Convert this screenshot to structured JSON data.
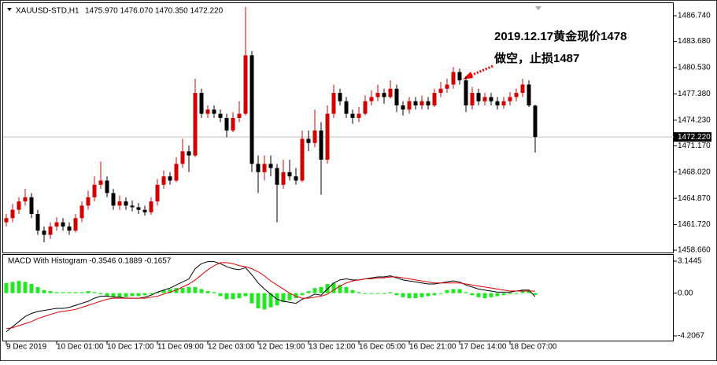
{
  "chart_data": {
    "type": "candlestick",
    "symbol": "XAUUSD-STD,H1",
    "ohlc_text": "1475.970 1476.070 1470.350 1472.220",
    "annotation": [
      "2019.12.17黄金现价1478",
      "做空，止损1487"
    ],
    "bull_color": "#d40000",
    "bear_color": "#000000",
    "ylim": [
      1458.38,
      1488.25
    ],
    "yticks": [
      {
        "value": 1486.74,
        "label": "1486.740"
      },
      {
        "value": 1483.68,
        "label": "1483.680"
      },
      {
        "value": 1480.53,
        "label": "1480.530"
      },
      {
        "value": 1477.38,
        "label": "1477.380"
      },
      {
        "value": 1474.23,
        "label": "1474.230"
      },
      {
        "value": 1471.17,
        "label": "1471.170"
      },
      {
        "value": 1468.02,
        "label": "1468.020"
      },
      {
        "value": 1464.87,
        "label": "1464.870"
      },
      {
        "value": 1461.72,
        "label": "1461.720"
      },
      {
        "value": 1458.66,
        "label": "1458.660"
      }
    ],
    "last_price": {
      "value": 1472.22,
      "label": "1472.220"
    },
    "xticks": [
      {
        "value": 0,
        "label": "9 Dec 2019"
      },
      {
        "value": 8,
        "label": "10 Dec 01:00"
      },
      {
        "value": 16,
        "label": "10 Dec 17:00"
      },
      {
        "value": 24,
        "label": "11 Dec 09:00"
      },
      {
        "value": 32,
        "label": "12 Dec 03:00"
      },
      {
        "value": 40,
        "label": "12 Dec 19:00"
      },
      {
        "value": 48,
        "label": "13 Dec 12:00"
      },
      {
        "value": 56,
        "label": "16 Dec 05:00"
      },
      {
        "value": 64,
        "label": "16 Dec 21:00"
      },
      {
        "value": 72,
        "label": "17 Dec 14:00"
      },
      {
        "value": 80,
        "label": "18 Dec 07:00"
      }
    ],
    "candles": [
      [
        1462.0,
        1463.0,
        1461.5,
        1462.5
      ],
      [
        1462.5,
        1464.2,
        1462.0,
        1463.5
      ],
      [
        1463.5,
        1465.0,
        1463.0,
        1464.5
      ],
      [
        1464.5,
        1466.0,
        1464.0,
        1465.0
      ],
      [
        1465.0,
        1465.5,
        1462.5,
        1463.0
      ],
      [
        1463.0,
        1463.5,
        1460.5,
        1461.0
      ],
      [
        1461.0,
        1461.5,
        1459.6,
        1460.5
      ],
      [
        1460.5,
        1462.0,
        1460.0,
        1461.5
      ],
      [
        1461.5,
        1462.6,
        1461.0,
        1462.0
      ],
      [
        1462.0,
        1462.5,
        1461.0,
        1461.5
      ],
      [
        1461.5,
        1462.0,
        1460.5,
        1461.0
      ],
      [
        1461.0,
        1463.0,
        1460.8,
        1462.5
      ],
      [
        1462.5,
        1464.5,
        1462.0,
        1464.0
      ],
      [
        1464.0,
        1465.8,
        1463.5,
        1465.0
      ],
      [
        1465.0,
        1467.5,
        1464.5,
        1466.5
      ],
      [
        1466.5,
        1469.3,
        1466.0,
        1467.0
      ],
      [
        1467.0,
        1467.5,
        1465.0,
        1465.5
      ],
      [
        1465.5,
        1466.0,
        1463.5,
        1464.0
      ],
      [
        1464.0,
        1465.2,
        1463.5,
        1464.5
      ],
      [
        1464.5,
        1465.0,
        1463.5,
        1464.0
      ],
      [
        1464.0,
        1464.6,
        1463.3,
        1463.8
      ],
      [
        1463.8,
        1464.3,
        1463.0,
        1463.5
      ],
      [
        1463.5,
        1464.0,
        1462.8,
        1463.2
      ],
      [
        1463.2,
        1465.0,
        1462.9,
        1464.5
      ],
      [
        1464.5,
        1467.2,
        1464.0,
        1466.5
      ],
      [
        1466.5,
        1468.2,
        1466.0,
        1467.5
      ],
      [
        1467.5,
        1468.0,
        1466.5,
        1467.0
      ],
      [
        1467.0,
        1469.8,
        1466.8,
        1469.0
      ],
      [
        1469.0,
        1472.0,
        1468.5,
        1470.5
      ],
      [
        1470.5,
        1471.2,
        1468.0,
        1470.0
      ],
      [
        1470.0,
        1479.2,
        1469.8,
        1477.5
      ],
      [
        1477.5,
        1478.0,
        1474.5,
        1475.0
      ],
      [
        1475.0,
        1476.0,
        1474.5,
        1475.5
      ],
      [
        1475.5,
        1476.0,
        1474.5,
        1475.0
      ],
      [
        1475.0,
        1475.5,
        1474.0,
        1474.5
      ],
      [
        1474.5,
        1475.0,
        1472.2,
        1473.0
      ],
      [
        1473.0,
        1475.2,
        1472.8,
        1474.5
      ],
      [
        1474.5,
        1476.5,
        1474.0,
        1475.0
      ],
      [
        1475.0,
        1487.8,
        1474.8,
        1482.0
      ],
      [
        1482.0,
        1482.5,
        1468.0,
        1469.0
      ],
      [
        1469.0,
        1470.0,
        1465.5,
        1468.0
      ],
      [
        1468.0,
        1470.0,
        1467.0,
        1469.0
      ],
      [
        1469.0,
        1470.0,
        1467.5,
        1468.5
      ],
      [
        1468.5,
        1469.0,
        1462.0,
        1466.5
      ],
      [
        1466.5,
        1469.5,
        1466.0,
        1468.0
      ],
      [
        1468.0,
        1469.5,
        1467.0,
        1467.5
      ],
      [
        1467.5,
        1468.5,
        1466.5,
        1467.0
      ],
      [
        1467.0,
        1473.0,
        1466.8,
        1472.0
      ],
      [
        1472.0,
        1473.0,
        1470.5,
        1471.5
      ],
      [
        1471.5,
        1475.5,
        1471.0,
        1473.0
      ],
      [
        1473.0,
        1474.0,
        1465.3,
        1469.5
      ],
      [
        1469.5,
        1476.0,
        1469.0,
        1475.0
      ],
      [
        1475.0,
        1478.5,
        1474.5,
        1477.5
      ],
      [
        1477.5,
        1478.0,
        1476.0,
        1476.5
      ],
      [
        1476.5,
        1477.0,
        1474.5,
        1475.0
      ],
      [
        1475.0,
        1475.5,
        1473.8,
        1474.5
      ],
      [
        1474.5,
        1475.8,
        1474.0,
        1475.0
      ],
      [
        1475.0,
        1477.2,
        1474.8,
        1476.5
      ],
      [
        1476.5,
        1477.8,
        1476.0,
        1477.0
      ],
      [
        1477.0,
        1478.5,
        1476.5,
        1477.5
      ],
      [
        1477.5,
        1478.0,
        1476.2,
        1477.0
      ],
      [
        1477.0,
        1479.0,
        1476.8,
        1478.0
      ],
      [
        1478.0,
        1478.5,
        1475.2,
        1476.0
      ],
      [
        1476.0,
        1476.5,
        1474.8,
        1475.5
      ],
      [
        1475.5,
        1477.0,
        1475.0,
        1476.5
      ],
      [
        1476.5,
        1477.0,
        1475.5,
        1476.0
      ],
      [
        1476.0,
        1477.2,
        1475.5,
        1476.5
      ],
      [
        1476.5,
        1477.0,
        1475.5,
        1476.0
      ],
      [
        1476.0,
        1478.0,
        1475.8,
        1477.5
      ],
      [
        1477.5,
        1478.8,
        1477.0,
        1478.0
      ],
      [
        1478.0,
        1479.2,
        1477.5,
        1478.5
      ],
      [
        1478.5,
        1480.6,
        1478.0,
        1480.0
      ],
      [
        1480.0,
        1480.4,
        1478.5,
        1479.0
      ],
      [
        1479.0,
        1479.5,
        1475.2,
        1476.0
      ],
      [
        1476.0,
        1478.2,
        1475.5,
        1477.5
      ],
      [
        1477.5,
        1478.0,
        1476.0,
        1476.5
      ],
      [
        1476.5,
        1477.5,
        1476.0,
        1477.0
      ],
      [
        1477.0,
        1477.5,
        1476.0,
        1476.5
      ],
      [
        1476.5,
        1477.0,
        1475.5,
        1476.0
      ],
      [
        1476.0,
        1477.0,
        1475.6,
        1476.5
      ],
      [
        1476.5,
        1477.6,
        1476.0,
        1477.0
      ],
      [
        1477.0,
        1478.0,
        1476.5,
        1477.5
      ],
      [
        1477.5,
        1479.2,
        1477.0,
        1478.5
      ],
      [
        1478.5,
        1479.0,
        1475.8,
        1476.0
      ],
      [
        1475.97,
        1476.07,
        1470.35,
        1472.22
      ]
    ],
    "macd": {
      "title": "MACD With Histogram -0.3546 0.1889 -0.1657",
      "ylim": [
        -4.671,
        3.764
      ],
      "yticks": [
        3.1445,
        {
          "value": 0,
          "label": "0.00"
        },
        -4.2067
      ],
      "histogram_color": "#22e622",
      "macd_color": "#000000",
      "signal_color": "#e00000",
      "histogram": [
        1.0,
        1.1,
        1.2,
        1.1,
        0.9,
        0.6,
        0.3,
        0.2,
        0.1,
        0.1,
        0.1,
        0.1,
        0.1,
        0.2,
        0.1,
        -0.1,
        -0.3,
        -0.4,
        -0.4,
        -0.4,
        -0.3,
        -0.3,
        -0.2,
        -0.1,
        0.1,
        0.3,
        0.4,
        0.5,
        0.5,
        0.6,
        0.6,
        0.4,
        0.2,
        0.1,
        -0.3,
        -0.6,
        -0.6,
        -0.5,
        -0.3,
        -1.0,
        -1.5,
        -1.6,
        -1.4,
        -1.2,
        -0.9,
        -0.7,
        -0.5,
        -0.2,
        0.2,
        0.5,
        0.6,
        0.9,
        1.0,
        0.8,
        0.6,
        0.3,
        0.1,
        0.0,
        0.0,
        0.0,
        0.0,
        0.1,
        -0.2,
        -0.4,
        -0.5,
        -0.5,
        -0.4,
        -0.3,
        -0.2,
        0.0,
        0.3,
        0.4,
        0.4,
        0.1,
        -0.2,
        -0.4,
        -0.5,
        -0.4,
        -0.3,
        -0.2,
        -0.1,
        0.0,
        0.2,
        0.3,
        -0.17
      ],
      "macd": [
        -3.8,
        -3.3,
        -2.8,
        -2.3,
        -2.0,
        -1.8,
        -1.7,
        -1.6,
        -1.5,
        -1.5,
        -1.4,
        -1.2,
        -1.0,
        -0.8,
        -0.5,
        -0.3,
        -0.3,
        -0.4,
        -0.4,
        -0.5,
        -0.5,
        -0.5,
        -0.4,
        -0.2,
        0.1,
        0.3,
        0.5,
        0.8,
        1.1,
        1.4,
        2.4,
        2.9,
        3.1,
        3.1,
        2.9,
        2.6,
        2.4,
        2.3,
        2.5,
        1.8,
        1.0,
        0.4,
        -0.1,
        -0.6,
        -0.8,
        -0.9,
        -1.0,
        -0.6,
        -0.4,
        -0.1,
        -0.2,
        0.4,
        1.0,
        1.3,
        1.4,
        1.3,
        1.3,
        1.4,
        1.5,
        1.6,
        1.6,
        1.7,
        1.5,
        1.3,
        1.2,
        1.1,
        1.0,
        0.9,
        0.9,
        1.0,
        1.1,
        1.2,
        1.1,
        0.8,
        0.6,
        0.4,
        0.3,
        0.2,
        0.1,
        0.1,
        0.1,
        0.2,
        0.3,
        0.3,
        -0.35
      ],
      "signal": [
        -3.5,
        -3.4,
        -3.2,
        -3.0,
        -2.8,
        -2.5,
        -2.3,
        -2.1,
        -1.9,
        -1.8,
        -1.7,
        -1.6,
        -1.4,
        -1.2,
        -1.0,
        -0.8,
        -0.6,
        -0.5,
        -0.5,
        -0.5,
        -0.5,
        -0.5,
        -0.5,
        -0.4,
        -0.3,
        -0.1,
        0.1,
        0.3,
        0.6,
        0.9,
        1.3,
        1.8,
        2.3,
        2.7,
        3.0,
        3.0,
        2.9,
        2.7,
        2.6,
        2.4,
        2.1,
        1.7,
        1.2,
        0.8,
        0.4,
        0.0,
        -0.3,
        -0.5,
        -0.5,
        -0.4,
        -0.3,
        -0.1,
        0.3,
        0.7,
        1.0,
        1.2,
        1.3,
        1.4,
        1.4,
        1.5,
        1.5,
        1.6,
        1.6,
        1.5,
        1.4,
        1.3,
        1.2,
        1.1,
        1.0,
        1.0,
        1.0,
        1.0,
        1.0,
        0.9,
        0.8,
        0.7,
        0.6,
        0.5,
        0.4,
        0.3,
        0.2,
        0.2,
        0.2,
        0.2,
        0.19
      ]
    }
  }
}
